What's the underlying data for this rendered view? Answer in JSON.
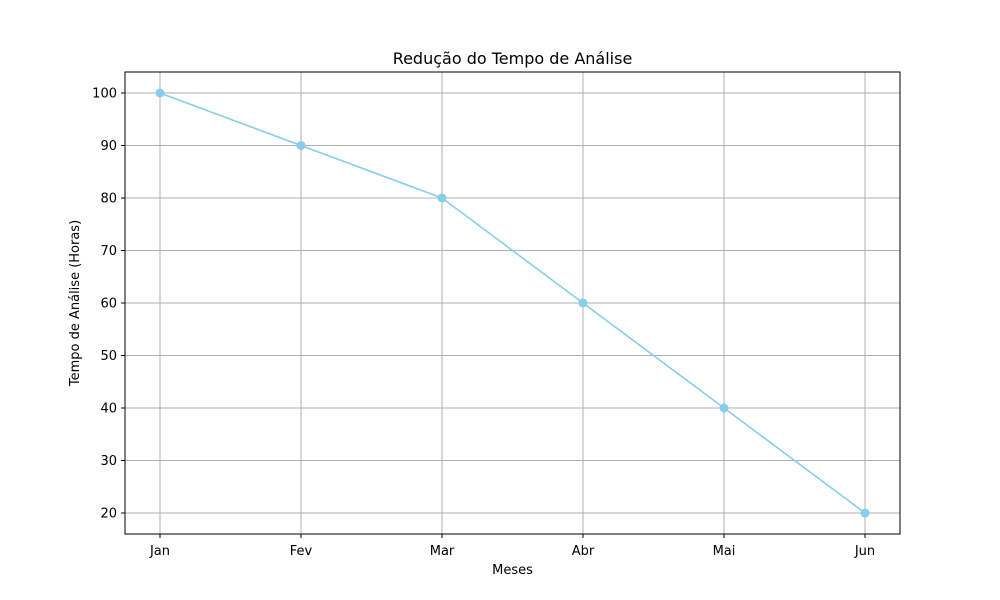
{
  "chart_data": {
    "type": "line",
    "title": "Redução do Tempo de Análise",
    "xlabel": "Meses",
    "ylabel": "Tempo de Análise (Horas)",
    "categories": [
      "Jan",
      "Fev",
      "Mar",
      "Abr",
      "Mai",
      "Jun"
    ],
    "values": [
      100,
      90,
      80,
      60,
      40,
      20
    ],
    "ylim": [
      16,
      104
    ],
    "yticks": [
      20,
      30,
      40,
      50,
      60,
      70,
      80,
      90,
      100
    ],
    "grid": true,
    "marker": "circle",
    "line_color": "#87ceeb",
    "grid_color": "#b0b0b0"
  }
}
